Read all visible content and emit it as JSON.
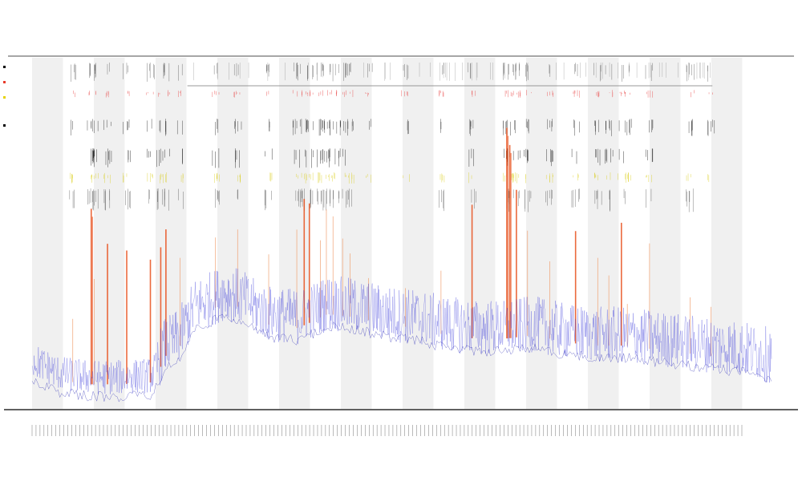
{
  "chart_data": {
    "type": "line",
    "title": "",
    "subtitle_lines": [
      "",
      ""
    ],
    "xlabel": "",
    "ylabel": "",
    "legend": {
      "placement": "left",
      "entries": [
        {
          "name": "",
          "color": "#000000"
        },
        {
          "name": "",
          "color": "#e83a2a"
        },
        {
          "name": "",
          "color": "#e6d200"
        },
        {
          "name": "",
          "color": "#000000"
        }
      ]
    },
    "grid": false,
    "x_range": [
      0,
      1000
    ],
    "y_range": [
      0,
      100
    ],
    "series": [
      {
        "name": "",
        "color": "#3b3bdb",
        "role": "base_signal"
      },
      {
        "name": "",
        "color": "#e8501c",
        "role": "spikes"
      }
    ],
    "base_level": [
      [
        0,
        12
      ],
      [
        4,
        8
      ],
      [
        8,
        7
      ],
      [
        12,
        7
      ],
      [
        16,
        7.5
      ],
      [
        17,
        10
      ],
      [
        18,
        15
      ],
      [
        19,
        16
      ],
      [
        20,
        18
      ],
      [
        22,
        26
      ],
      [
        24,
        28
      ],
      [
        26,
        30
      ],
      [
        28,
        29
      ],
      [
        30,
        26
      ],
      [
        32,
        24
      ],
      [
        36,
        23
      ],
      [
        40,
        27
      ],
      [
        44,
        26
      ],
      [
        48,
        24
      ],
      [
        52,
        23
      ],
      [
        56,
        21
      ],
      [
        60,
        20
      ],
      [
        64,
        20
      ],
      [
        68,
        21
      ],
      [
        72,
        19
      ],
      [
        76,
        18
      ],
      [
        80,
        18
      ],
      [
        84,
        17
      ],
      [
        88,
        16
      ],
      [
        92,
        15
      ],
      [
        96,
        14
      ],
      [
        100,
        12
      ]
    ],
    "spike_positions": [
      [
        5.5,
        18
      ],
      [
        8.0,
        50
      ],
      [
        8.4,
        30
      ],
      [
        10.2,
        40
      ],
      [
        12.8,
        38
      ],
      [
        16.0,
        35
      ],
      [
        17.4,
        34
      ],
      [
        18.1,
        36
      ],
      [
        20.0,
        25
      ],
      [
        24.8,
        20
      ],
      [
        27.8,
        22
      ],
      [
        32.0,
        20
      ],
      [
        35.8,
        28
      ],
      [
        36.8,
        36
      ],
      [
        37.5,
        34
      ],
      [
        39.0,
        22
      ],
      [
        39.8,
        30
      ],
      [
        40.7,
        28
      ],
      [
        42.0,
        22
      ],
      [
        43.0,
        18
      ],
      [
        45.5,
        12
      ],
      [
        50.5,
        11
      ],
      [
        55.3,
        18
      ],
      [
        59.5,
        38
      ],
      [
        64.2,
        60
      ],
      [
        64.6,
        55
      ],
      [
        65.5,
        42
      ],
      [
        67.0,
        30
      ],
      [
        70.0,
        22
      ],
      [
        73.5,
        32
      ],
      [
        76.5,
        25
      ],
      [
        78.0,
        20
      ],
      [
        79.7,
        35
      ],
      [
        80.5,
        12
      ],
      [
        83.5,
        30
      ],
      [
        89.0,
        16
      ],
      [
        91.8,
        14
      ]
    ],
    "top_bracket": {
      "x_start": 21,
      "x_end": 92
    }
  },
  "x_tick_labels_count": 180
}
